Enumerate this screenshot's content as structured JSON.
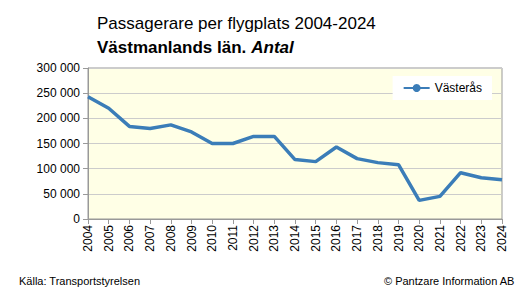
{
  "chart_data": {
    "type": "line",
    "title": "Passagerare per flygplats 2004-2024",
    "subtitle": "Västmanlands län.",
    "unit_label": "Antal",
    "source": "Källa: Transportstyrelsen",
    "credit": "© Pantzare Information AB",
    "categories": [
      "2004",
      "2005",
      "2006",
      "2007",
      "2008",
      "2009",
      "2010",
      "2011",
      "2012",
      "2013",
      "2014",
      "2015",
      "2016",
      "2017",
      "2018",
      "2019",
      "2020",
      "2021",
      "2022",
      "2023",
      "2024"
    ],
    "series": [
      {
        "name": "Västerås",
        "color": "#3b7db8",
        "values": [
          243000,
          220000,
          184000,
          180000,
          187000,
          173000,
          150000,
          150000,
          164000,
          164000,
          118000,
          114000,
          143000,
          120000,
          112000,
          108000,
          37000,
          45000,
          92000,
          82000,
          78000
        ]
      }
    ],
    "ylim": [
      0,
      300000
    ],
    "yticks": [
      0,
      {
        "value": 50000,
        "label": "50 000"
      },
      {
        "value": 100000,
        "label": "100 000"
      },
      {
        "value": 150000,
        "label": "150 000"
      },
      {
        "value": 200000,
        "label": "200 000"
      },
      {
        "value": 250000,
        "label": "250 000"
      },
      {
        "value": 300000,
        "label": "300 000"
      }
    ],
    "grid": true,
    "legend": "upper right"
  }
}
